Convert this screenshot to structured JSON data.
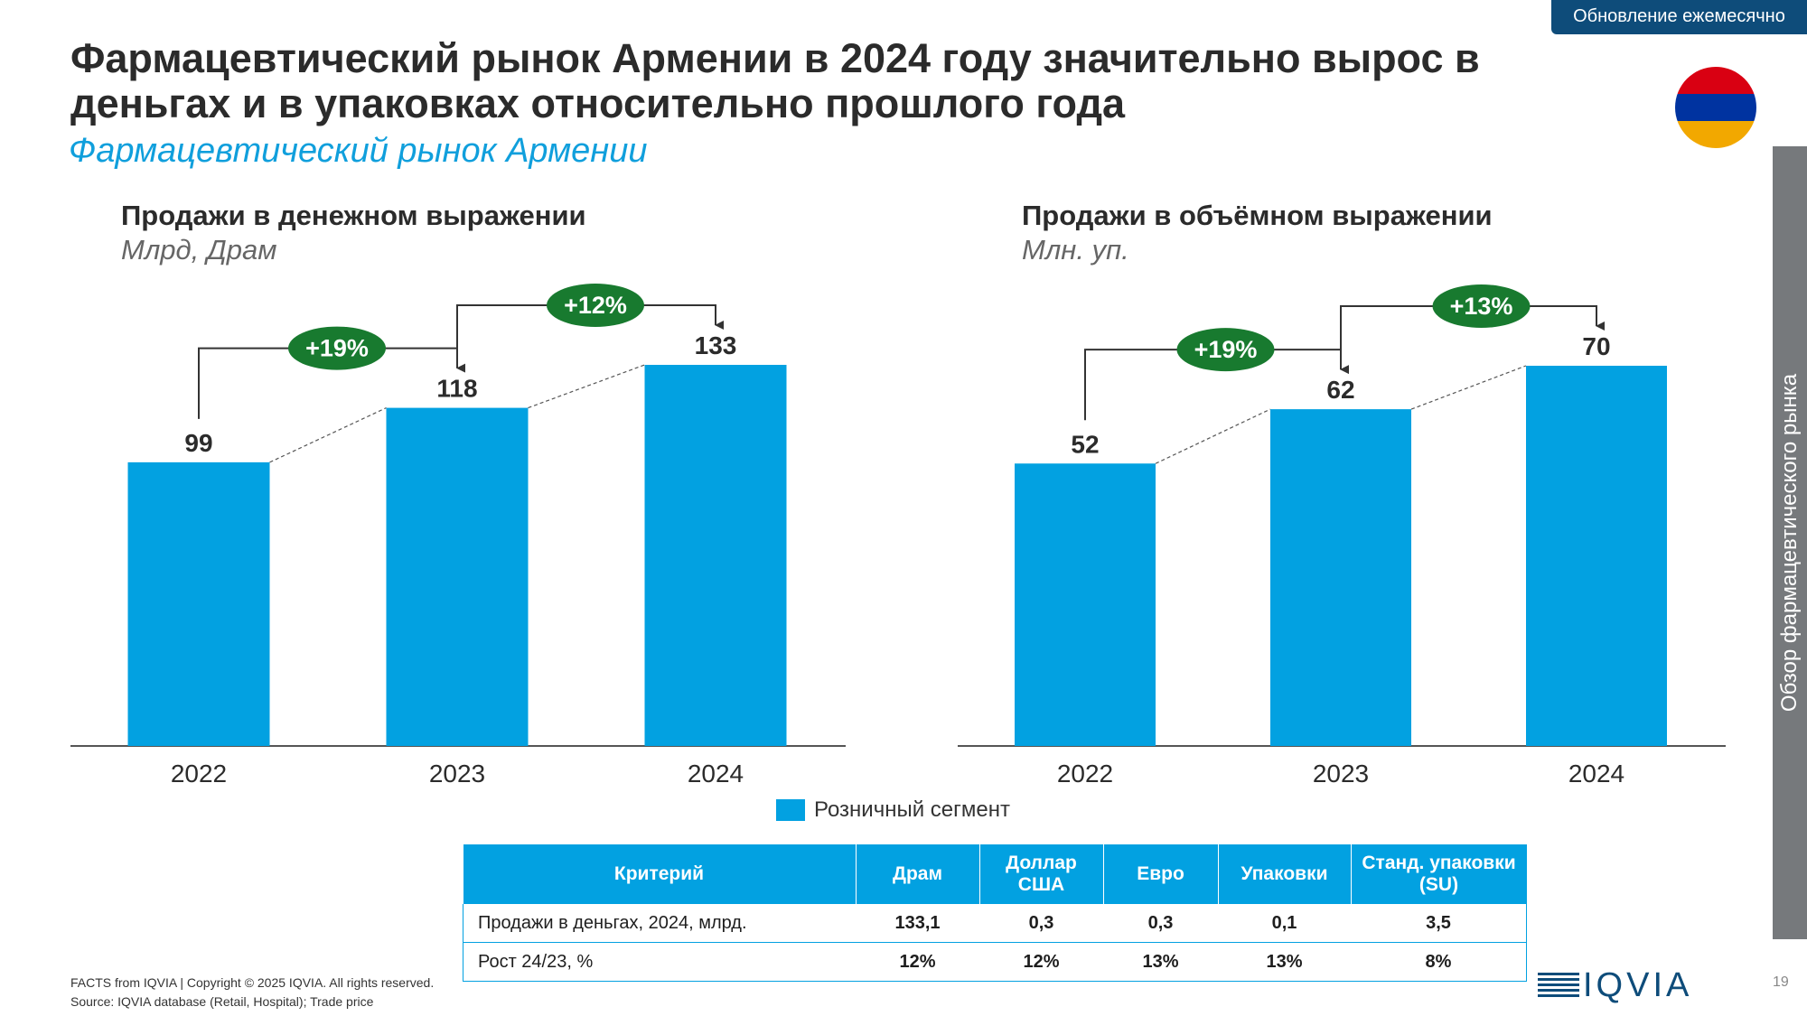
{
  "badge": "Обновление ежемесячно",
  "title": "Фармацевтический рынок Армении в 2024 году значительно вырос в деньгах и в упаковках относительно прошлого года",
  "subtitle": "Фармацевтический рынок Армении",
  "sidebar_text": "Обзор фармацевтического рынка",
  "colors": {
    "bar": "#02a1e1",
    "growth_badge": "#187a2f",
    "header": "#0e4c7a",
    "flag": [
      "#d90012",
      "#0033a0",
      "#f2a800"
    ]
  },
  "legend": {
    "label": "Розничный сегмент"
  },
  "chart_data": [
    {
      "type": "bar",
      "title": "Продажи в денежном выражении",
      "unit": "Млрд, Драм",
      "categories": [
        "2022",
        "2023",
        "2024"
      ],
      "series": [
        {
          "name": "Розничный сегмент",
          "values": [
            99,
            118,
            133
          ]
        }
      ],
      "value_labels": [
        "99",
        "118",
        "133"
      ],
      "growth": [
        "+19%",
        "+12%"
      ]
    },
    {
      "type": "bar",
      "title": "Продажи в объёмном выражении",
      "unit": "Млн. уп.",
      "categories": [
        "2022",
        "2023",
        "2024"
      ],
      "series": [
        {
          "name": "Розничный сегмент",
          "values": [
            52,
            62,
            70
          ]
        }
      ],
      "value_labels": [
        "52",
        "62",
        "70"
      ],
      "growth": [
        "+19%",
        "+13%"
      ]
    }
  ],
  "table": {
    "headers": [
      "Критерий",
      "Драм",
      "Доллар США",
      "Евро",
      "Упаковки",
      "Станд. упаковки (SU)"
    ],
    "rows": [
      [
        "Продажи в деньгах,  2024, млрд.",
        "133,1",
        "0,3",
        "0,3",
        "0,1",
        "3,5"
      ],
      [
        "Рост 24/23, %",
        "12%",
        "12%",
        "13%",
        "13%",
        "8%"
      ]
    ]
  },
  "footer": {
    "line1": "FACTS from IQVIA | Copyright © 2025 IQVIA. All rights reserved.",
    "line2": "Source: IQVIA database (Retail, Hospital); Trade price"
  },
  "logo_text": "IQVIA",
  "page_number": "19"
}
